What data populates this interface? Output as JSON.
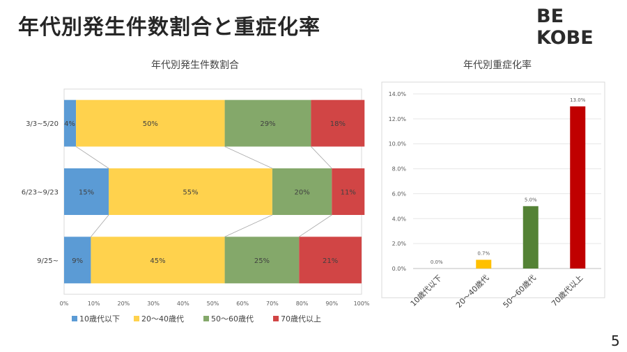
{
  "slide": {
    "title": "年代別発生件数割合と重症化率",
    "logo": "BE KOBE",
    "page_number": "5"
  },
  "chart_data": [
    {
      "type": "bar",
      "orientation": "horizontal",
      "stacked": "percent",
      "title": "年代別発生件数割合",
      "categories": [
        "3/3~5/20",
        "6/23~9/23",
        "9/25~"
      ],
      "series": [
        {
          "name": "10歳代以下",
          "color": "#5b9bd5",
          "values": [
            4,
            15,
            9
          ],
          "labels": [
            "4%",
            "15%",
            "9%"
          ]
        },
        {
          "name": "20～40歳代",
          "color": "#ffd24d",
          "values": [
            50,
            55,
            45
          ],
          "labels": [
            "50%",
            "55%",
            "45%"
          ]
        },
        {
          "name": "50～60歳代",
          "color": "#84a86a",
          "values": [
            29,
            20,
            25
          ],
          "labels": [
            "29%",
            "20%",
            "25%"
          ]
        },
        {
          "name": "70歳代以上",
          "color": "#d14545",
          "values": [
            18,
            11,
            21
          ],
          "labels": [
            "18%",
            "11%",
            "21%"
          ]
        }
      ],
      "x_ticks": [
        "0%",
        "10%",
        "20%",
        "30%",
        "40%",
        "50%",
        "60%",
        "70%",
        "80%",
        "90%",
        "100%"
      ],
      "xlim": [
        0,
        100
      ],
      "legend": "bottom"
    },
    {
      "type": "bar",
      "title": "年代別重症化率",
      "categories": [
        "10歳代以下",
        "20～40歳代",
        "50～60歳代",
        "70歳代以上"
      ],
      "values": [
        0.0,
        0.7,
        5.0,
        13.0
      ],
      "labels": [
        "0.0%",
        "0.7%",
        "5.0%",
        "13.0%"
      ],
      "colors": [
        "#ffc000",
        "#ffc000",
        "#548235",
        "#c00000"
      ],
      "y_ticks": [
        "0.0%",
        "2.0%",
        "4.0%",
        "6.0%",
        "8.0%",
        "10.0%",
        "12.0%",
        "14.0%"
      ],
      "ylim": [
        0,
        14
      ]
    }
  ]
}
